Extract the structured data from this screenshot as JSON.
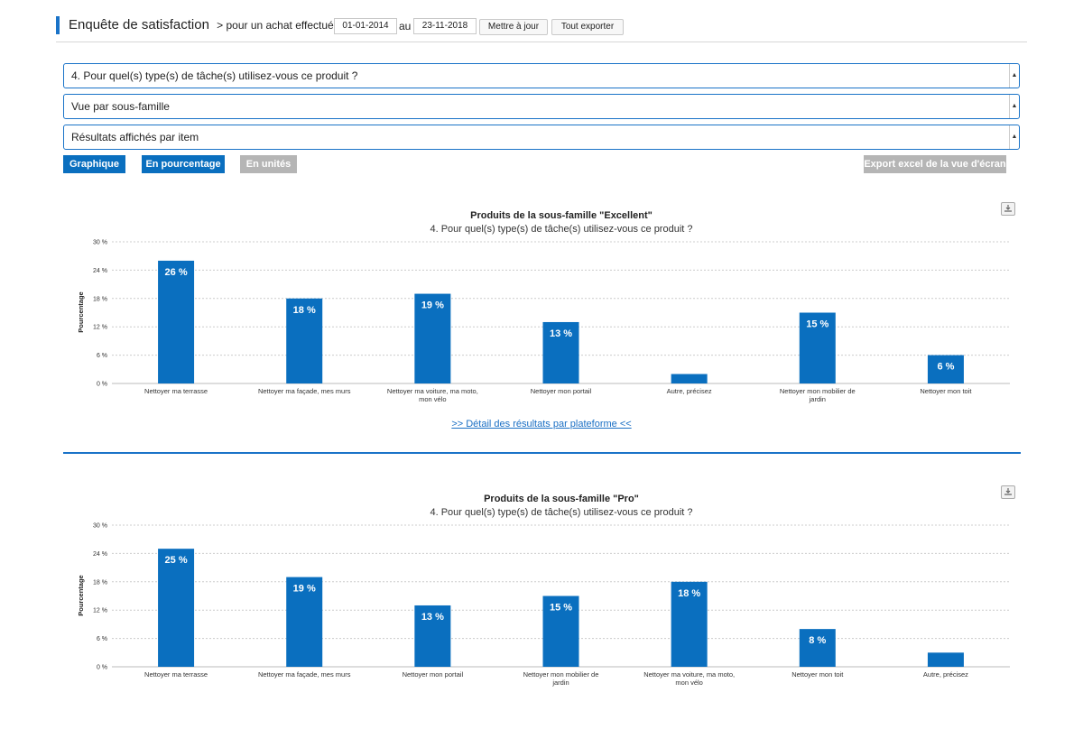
{
  "header": {
    "title": "Enquête de satisfaction",
    "subtitle": "> pour un achat effectué du",
    "date_from": "01-01-2014",
    "date_sep": "au",
    "date_to": "23-11-2018",
    "update_button": "Mettre à jour",
    "export_all_button": "Tout exporter"
  },
  "selects": {
    "question": "4. Pour quel(s) type(s) de tâche(s) utilisez-vous ce produit ?",
    "view": "Vue par sous-famille",
    "results": "Résultats affichés par item"
  },
  "toggles": {
    "graph": "Graphique",
    "percent": "En pourcentage",
    "units": "En unités",
    "export_excel": "Export excel de la vue d'écran"
  },
  "detail_link": ">> Détail des résultats par plateforme <<",
  "icons": [
    "download-icon",
    "chevron-down-icon"
  ],
  "colors": {
    "accent": "#1a73c8",
    "bar": "#0a6fbf",
    "disabled": "#b5b5b5"
  },
  "chart_data": [
    {
      "type": "bar",
      "title": "Produits de la sous-famille \"Excellent\"",
      "subtitle": "4. Pour quel(s) type(s) de tâche(s) utilisez-vous ce produit ?",
      "ylabel": "Pourcentage",
      "xlabel": "",
      "ylim": [
        0,
        30
      ],
      "yticks": [
        "0 %",
        "6 %",
        "12 %",
        "18 %",
        "24 %",
        "30 %"
      ],
      "categories": [
        "Nettoyer ma terrasse",
        "Nettoyer ma façade, mes murs",
        "Nettoyer ma voiture, ma moto, mon vélo",
        "Nettoyer mon portail",
        "Autre, précisez",
        "Nettoyer mon mobilier de jardin",
        "Nettoyer mon toit"
      ],
      "values": [
        26,
        18,
        19,
        13,
        2,
        15,
        6
      ],
      "labels": [
        "26 %",
        "18 %",
        "19 %",
        "13 %",
        "",
        "15 %",
        "6 %"
      ],
      "grid": true
    },
    {
      "type": "bar",
      "title": "Produits de la sous-famille \"Pro\"",
      "subtitle": "4. Pour quel(s) type(s) de tâche(s) utilisez-vous ce produit ?",
      "ylabel": "Pourcentage",
      "xlabel": "",
      "ylim": [
        0,
        30
      ],
      "yticks": [
        "0 %",
        "6 %",
        "12 %",
        "18 %",
        "24 %",
        "30 %"
      ],
      "categories": [
        "Nettoyer ma terrasse",
        "Nettoyer ma façade, mes murs",
        "Nettoyer mon portail",
        "Nettoyer mon mobilier de jardin",
        "Nettoyer ma voiture, ma moto, mon vélo",
        "Nettoyer mon toit",
        "Autre, précisez"
      ],
      "values": [
        25,
        19,
        13,
        15,
        18,
        8,
        3
      ],
      "labels": [
        "25 %",
        "19 %",
        "13 %",
        "15 %",
        "18 %",
        "8 %",
        ""
      ],
      "grid": true
    }
  ]
}
